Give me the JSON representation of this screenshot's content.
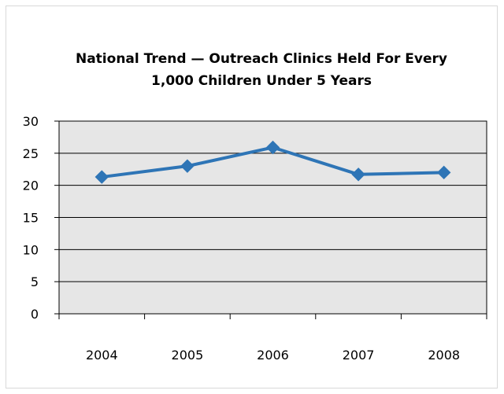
{
  "chart_data": {
    "type": "line",
    "title_lines": [
      "National Trend — Outreach Clinics Held For Every",
      "1,000 Children Under 5 Years"
    ],
    "xlabel": "",
    "ylabel": "",
    "categories": [
      "2004",
      "2005",
      "2006",
      "2007",
      "2008"
    ],
    "series": [
      {
        "values": [
          21.3,
          23.0,
          25.9,
          21.7,
          22.0
        ],
        "color": "#2e75b6",
        "marker": "diamond"
      }
    ],
    "ylim": [
      0,
      30
    ],
    "yticks": [
      "0",
      "5",
      "10",
      "15",
      "20",
      "25",
      "30"
    ],
    "grid": "horizontal",
    "plot_background": "#e6e6e6",
    "legend": "none"
  }
}
